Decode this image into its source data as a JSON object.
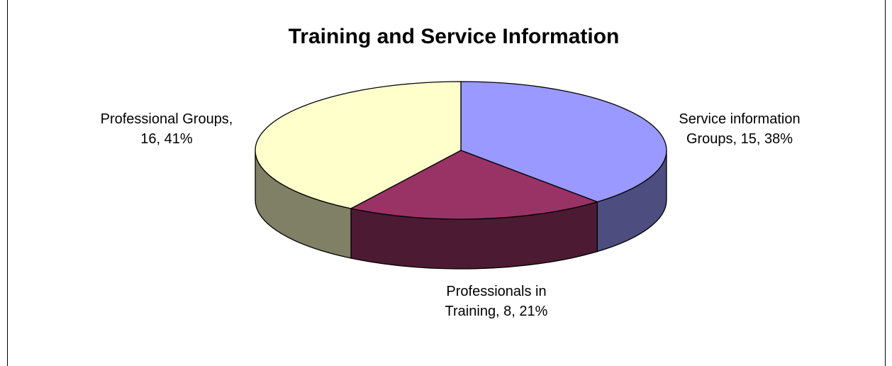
{
  "chart_data": {
    "type": "pie",
    "style": "3d",
    "title": "Training and Service Information",
    "categories": [
      "Service information Groups",
      "Professionals in Training",
      "Professional Groups"
    ],
    "values": [
      15,
      8,
      16
    ],
    "value_labels": [
      "Service information\nGroups, 15, 38%",
      "Professionals in\nTraining, 8, 21%",
      "Professional Groups,\n16, 41%"
    ],
    "colors": [
      "#9999ff",
      "#993366",
      "#ffffcc"
    ]
  }
}
